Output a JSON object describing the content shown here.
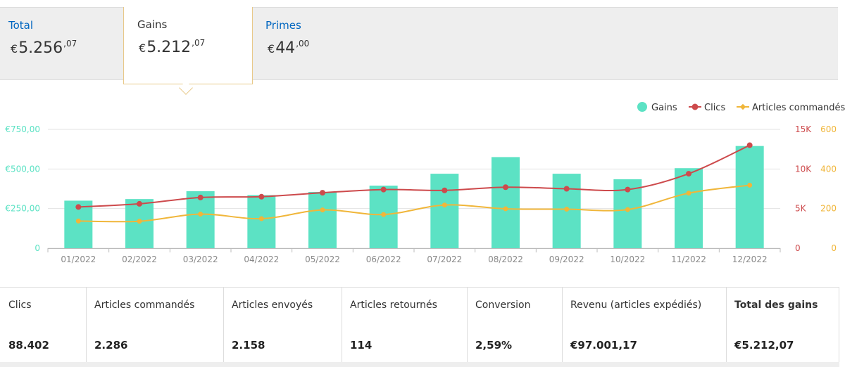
{
  "tabs": [
    {
      "label": "Total",
      "amount_main": "5.256",
      "amount_cents": ",07",
      "currency": "€"
    },
    {
      "label": "Gains",
      "amount_main": "5.212",
      "amount_cents": ",07",
      "currency": "€"
    },
    {
      "label": "Primes",
      "amount_main": "44",
      "amount_cents": ",00",
      "currency": "€"
    }
  ],
  "colors": {
    "gains": "#5ce2c4",
    "clics": "#cd4a4c",
    "articles": "#f0b63a",
    "accent_tab": "#e8c98a"
  },
  "chart_data": {
    "type": "bar",
    "categories": [
      "01/2022",
      "02/2022",
      "03/2022",
      "04/2022",
      "05/2022",
      "06/2022",
      "07/2022",
      "08/2022",
      "09/2022",
      "10/2022",
      "11/2022",
      "12/2022"
    ],
    "legend": [
      "Gains",
      "Clics",
      "Articles commandés"
    ],
    "series": [
      {
        "name": "Gains",
        "type": "bar",
        "axis": "left",
        "values": [
          300,
          310,
          360,
          335,
          355,
          395,
          470,
          575,
          470,
          435,
          505,
          645
        ]
      },
      {
        "name": "Clics",
        "type": "line",
        "axis": "right1",
        "values": [
          5200,
          5600,
          6400,
          6500,
          7000,
          7400,
          7300,
          7700,
          7500,
          7400,
          9400,
          13000
        ]
      },
      {
        "name": "Articles commandés",
        "type": "line",
        "axis": "right2",
        "values": [
          137,
          136,
          172,
          149,
          193,
          170,
          218,
          199,
          197,
          195,
          278,
          318
        ]
      }
    ],
    "left_axis": {
      "min": 0,
      "max": 750,
      "ticks": [
        0,
        250,
        500,
        750
      ],
      "tick_labels": [
        "0",
        "€250,00",
        "€500,00",
        "€750,00"
      ]
    },
    "right_axis_1": {
      "min": 0,
      "max": 15000,
      "ticks": [
        0,
        5000,
        10000,
        15000
      ],
      "tick_labels": [
        "0",
        "5K",
        "10K",
        "15K"
      ]
    },
    "right_axis_2": {
      "min": 0,
      "max": 600,
      "ticks": [
        0,
        200,
        400,
        600
      ],
      "tick_labels": [
        "0",
        "200",
        "400",
        "600"
      ]
    }
  },
  "stats": [
    {
      "label": "Clics",
      "value": "88.402"
    },
    {
      "label": "Articles commandés",
      "value": "2.286"
    },
    {
      "label": "Articles envoyés",
      "value": "2.158"
    },
    {
      "label": "Articles retournés",
      "value": "114"
    },
    {
      "label": "Conversion",
      "value": "2,59%"
    },
    {
      "label": "Revenu (articles expédiés)",
      "value": "€97.001,17"
    },
    {
      "label": "Total des gains",
      "value": "€5.212,07"
    }
  ]
}
